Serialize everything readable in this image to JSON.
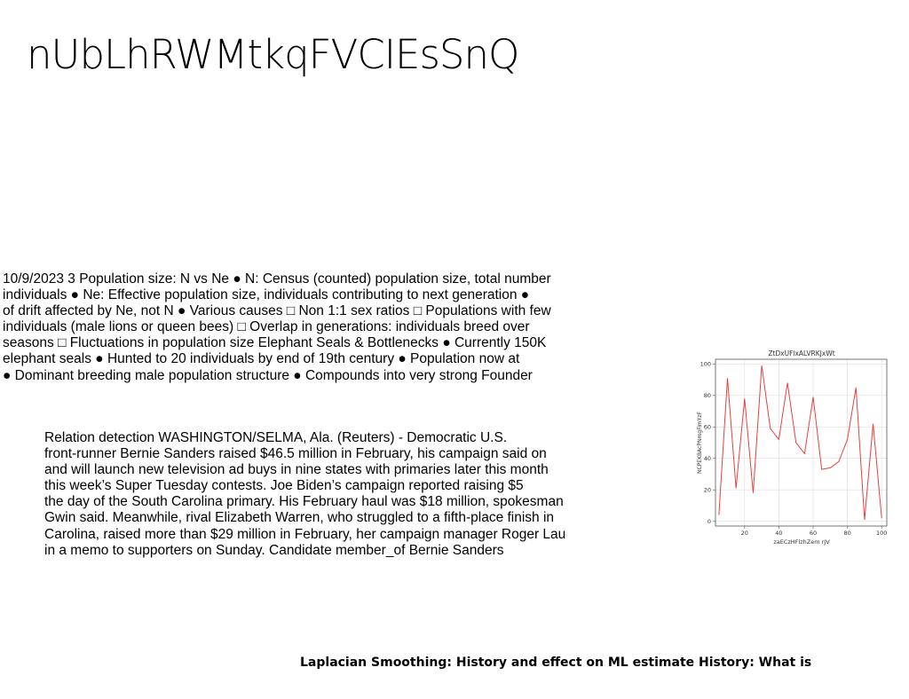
{
  "title": "nUbLhRWMtkqFVCIEsSnQ",
  "paragraph_1": [
    "10/9/2023 3 Population size: N vs Ne ● N: Census (counted) population size, total number",
    "individuals ● Ne: Effective population size, individuals contributing to next generation ●",
    "of drift affected by Ne, not N ● Various causes □ Non 1:1 sex ratios □ Populations with few",
    "individuals (male lions or queen bees) □ Overlap in generations: individuals breed over",
    "seasons □ Fluctuations in population size Elephant Seals & Bottlenecks ● Currently 150K",
    "elephant seals ● Hunted to 20 individuals by end of 19th century ● Population now at",
    "● Dominant breeding male population structure ● Compounds into very strong Founder"
  ],
  "paragraph_2": [
    "Relation detection WASHINGTON/SELMA, Ala. (Reuters) - Democratic U.S.",
    "front-runner Bernie Sanders raised $46.5 million in February, his campaign said on",
    "and will launch new television ad buys in nine states with primaries later this month",
    "this week’s Super Tuesday contests. Joe Biden’s campaign reported raising $5",
    "the day of the South Carolina primary. His February haul was $18 million, spokesman",
    "Gwin said. Meanwhile, rival Elizabeth Warren, who struggled to a fifth-place finish in",
    "Carolina, raised more than $29 million in February, her campaign manager Roger Lau",
    "in a memo to supporters on Sunday. Candidate member_of Bernie Sanders"
  ],
  "footer": "Laplacian Smoothing: History and effect on ML estimate History: What is",
  "chart_data": {
    "type": "line",
    "title": "ZtDxUFlxALVRKJxWt",
    "xlabel": "zaECzHFlzhZem rJV",
    "ylabel": "NCPEKBAcPNmgFimYzF",
    "xlim": [
      3,
      103
    ],
    "ylim": [
      -3,
      103
    ],
    "xticks": [
      "20",
      "40",
      "60",
      "80",
      "100"
    ],
    "yticks": [
      "0",
      "20",
      "40",
      "60",
      "80",
      "100"
    ],
    "grid": true,
    "line_color": "#e8413c",
    "series": [
      {
        "x": [
          5,
          10,
          15,
          20,
          25,
          30,
          35,
          40,
          45,
          50,
          55,
          60,
          65,
          70,
          75,
          80,
          85,
          90,
          95,
          100
        ],
        "values": [
          4,
          91,
          21,
          78,
          18,
          99,
          59,
          52,
          88,
          50,
          43,
          79,
          33,
          34,
          38,
          52,
          85,
          1,
          62,
          2
        ]
      }
    ]
  }
}
